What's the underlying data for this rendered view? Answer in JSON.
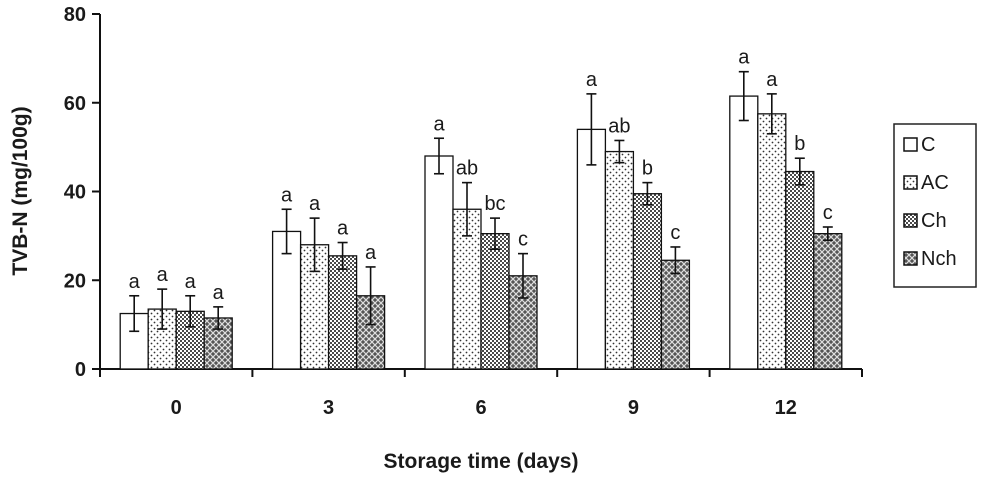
{
  "chart_data": {
    "type": "bar",
    "title": "",
    "xlabel": "Storage time (days)",
    "ylabel": "TVB-N (mg/100g)",
    "categories": [
      "0",
      "3",
      "6",
      "9",
      "12"
    ],
    "ylim": [
      0,
      80
    ],
    "yticks": [
      "0",
      "20",
      "40",
      "60",
      "80"
    ],
    "grid": false,
    "legend_position": "right",
    "series": [
      {
        "name": "C",
        "pattern": "plain",
        "values": [
          12.5,
          31,
          48,
          54,
          61.5
        ],
        "errors": [
          4,
          5,
          4,
          8,
          5.5
        ],
        "labels": [
          "a",
          "a",
          "a",
          "a",
          "a"
        ]
      },
      {
        "name": "AC",
        "pattern": "sparse-dots",
        "values": [
          13.5,
          28,
          36,
          49,
          57.5
        ],
        "errors": [
          4.5,
          6,
          6,
          2.5,
          4.5
        ],
        "labels": [
          "a",
          "a",
          "ab",
          "ab",
          "a"
        ]
      },
      {
        "name": "Ch",
        "pattern": "dense-dots",
        "values": [
          13,
          25.5,
          30.5,
          39.5,
          44.5
        ],
        "errors": [
          3.5,
          3,
          3.5,
          2.5,
          3
        ],
        "labels": [
          "a",
          "a",
          "bc",
          "b",
          "b"
        ]
      },
      {
        "name": "Nch",
        "pattern": "crosshatch",
        "values": [
          11.5,
          16.5,
          21,
          24.5,
          30.5
        ],
        "errors": [
          2.5,
          6.5,
          5,
          3,
          1.5
        ],
        "labels": [
          "a",
          "a",
          "c",
          "c",
          "c"
        ]
      }
    ]
  }
}
